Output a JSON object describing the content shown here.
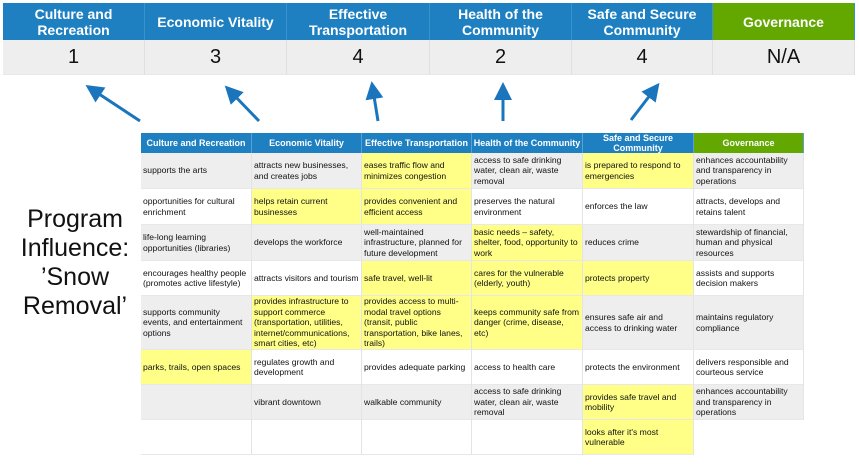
{
  "summary": {
    "categories": [
      "Culture and Recreation",
      "Economic Vitality",
      "Effective Transportation",
      "Health of the Community",
      "Safe and Secure Community",
      "Governance"
    ],
    "scores": [
      "1",
      "3",
      "4",
      "2",
      "4",
      "N/A"
    ]
  },
  "program_label": "Program Influence: ’Snow Removal’",
  "colors": {
    "header_blue": "#1e80c1",
    "governance_green": "#62a800",
    "highlight": "#ffff88",
    "arrow": "#1b75bc"
  },
  "table": {
    "headers": [
      "Culture and Recreation",
      "Economic Vitality",
      "Effective Transportation",
      "Health of the Community",
      "Safe and Secure Community",
      "Governance"
    ],
    "rows": [
      [
        {
          "t": "supports the arts",
          "hl": false
        },
        {
          "t": "attracts new businesses, and creates jobs",
          "hl": false
        },
        {
          "t": "eases traffic flow and minimizes congestion",
          "hl": true
        },
        {
          "t": "access to safe drinking water, clean air, waste removal",
          "hl": false
        },
        {
          "t": "is prepared to respond to emergencies",
          "hl": true
        },
        {
          "t": "enhances accountability and transparency in operations",
          "hl": false
        }
      ],
      [
        {
          "t": "opportunities for cultural enrichment",
          "hl": false
        },
        {
          "t": "helps retain current businesses",
          "hl": true
        },
        {
          "t": "provides convenient and efficient access",
          "hl": true
        },
        {
          "t": "preserves the natural environment",
          "hl": false
        },
        {
          "t": "enforces the law",
          "hl": false
        },
        {
          "t": "attracts, develops and retains talent",
          "hl": false
        }
      ],
      [
        {
          "t": "life-long learning opportunities (libraries)",
          "hl": false
        },
        {
          "t": "develops the workforce",
          "hl": false
        },
        {
          "t": "well-maintained infrastructure, planned for future development",
          "hl": false
        },
        {
          "t": "basic needs – safety, shelter, food, opportunity to work",
          "hl": true
        },
        {
          "t": "reduces crime",
          "hl": false
        },
        {
          "t": "stewardship of financial, human and physical resources",
          "hl": false
        }
      ],
      [
        {
          "t": "encourages healthy people (promotes active lifestyle)",
          "hl": false
        },
        {
          "t": "attracts visitors and tourism",
          "hl": false
        },
        {
          "t": "safe travel, well-lit",
          "hl": true
        },
        {
          "t": "cares for the vulnerable (elderly, youth)",
          "hl": true
        },
        {
          "t": "protects property",
          "hl": true
        },
        {
          "t": "assists and supports decision makers",
          "hl": false
        }
      ],
      [
        {
          "t": "supports community events, and entertainment options",
          "hl": false
        },
        {
          "t": "provides infrastructure to support commerce (transportation, utilities, internet/communications, smart cities, etc)",
          "hl": true
        },
        {
          "t": "provides access to multi-modal travel options (transit, public transportation, bike lanes, trails)",
          "hl": true
        },
        {
          "t": "keeps community safe from danger (crime, disease, etc)",
          "hl": true
        },
        {
          "t": "ensures safe air and access to drinking water",
          "hl": false
        },
        {
          "t": "maintains regulatory compliance",
          "hl": false
        }
      ],
      [
        {
          "t": "parks, trails, open spaces",
          "hl": true
        },
        {
          "t": "regulates growth and development",
          "hl": false
        },
        {
          "t": "provides adequate parking",
          "hl": false
        },
        {
          "t": "access to health care",
          "hl": false
        },
        {
          "t": "protects the environment",
          "hl": false
        },
        {
          "t": "delivers responsible and courteous service",
          "hl": false
        }
      ],
      [
        {
          "t": "",
          "hl": false
        },
        {
          "t": "vibrant downtown",
          "hl": false
        },
        {
          "t": "walkable community",
          "hl": false
        },
        {
          "t": "access to safe drinking water, clean air, waste removal",
          "hl": false
        },
        {
          "t": "provides safe travel and mobility",
          "hl": true
        },
        {
          "t": "enhances accountability and transparency in operations",
          "hl": false
        }
      ],
      [
        {
          "t": "",
          "hl": false
        },
        {
          "t": "",
          "hl": false
        },
        {
          "t": "",
          "hl": false
        },
        {
          "t": "",
          "hl": false
        },
        {
          "t": "looks after it's most vulnerable",
          "hl": true
        },
        null
      ]
    ]
  }
}
